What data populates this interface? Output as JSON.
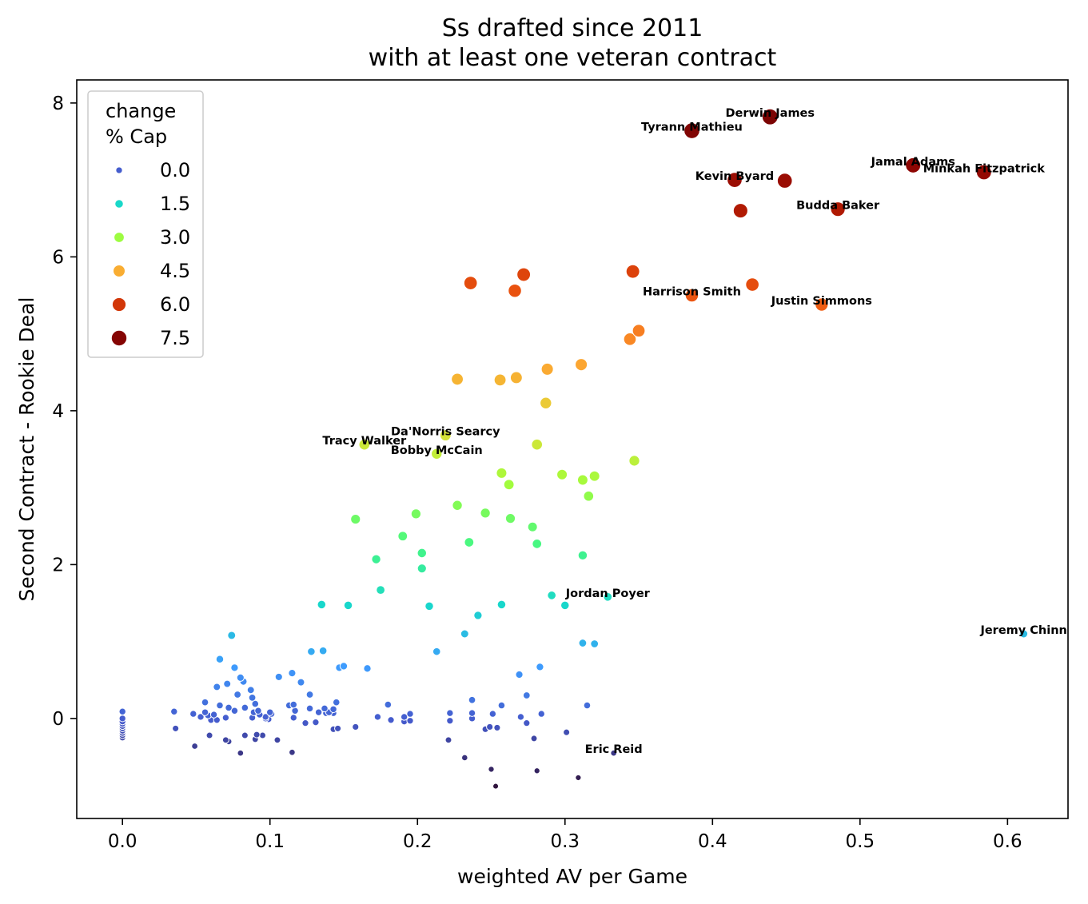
{
  "chart_data": {
    "type": "scatter",
    "title": [
      "Ss drafted since 2011",
      "with at least one veteran contract"
    ],
    "xlabel": "weighted AV per Game",
    "ylabel": "Second Contract - Rookie Deal",
    "xlim": [
      -0.031,
      0.641
    ],
    "ylim": [
      -1.3,
      8.3
    ],
    "xticks": [
      0.0,
      0.1,
      0.2,
      0.3,
      0.4,
      0.5,
      0.6
    ],
    "xtick_labels": [
      "0.0",
      "0.1",
      "0.2",
      "0.3",
      "0.4",
      "0.5",
      "0.6"
    ],
    "yticks": [
      0,
      2,
      4,
      6,
      8
    ],
    "ytick_labels": [
      "0",
      "2",
      "4",
      "6",
      "8"
    ],
    "grid": false,
    "legend": {
      "title": [
        "change",
        "% Cap"
      ],
      "placement": "top-left",
      "entries": [
        {
          "label": "0.0",
          "value": 0.0
        },
        {
          "label": "1.5",
          "value": 1.5
        },
        {
          "label": "3.0",
          "value": 3.0
        },
        {
          "label": "4.5",
          "value": 4.5
        },
        {
          "label": "6.0",
          "value": 6.0
        },
        {
          "label": "7.5",
          "value": 7.5
        }
      ]
    },
    "hue_variable": "change % Cap",
    "colormap": "turbo",
    "hue_range": [
      -0.9,
      7.9
    ],
    "points": [
      [
        0.439,
        7.82
      ],
      [
        0.386,
        7.64
      ],
      [
        0.536,
        7.19
      ],
      [
        0.584,
        7.1
      ],
      [
        0.415,
        7.0
      ],
      [
        0.449,
        6.99
      ],
      [
        0.485,
        6.62
      ],
      [
        0.419,
        6.6
      ],
      [
        0.346,
        5.81
      ],
      [
        0.272,
        5.77
      ],
      [
        0.236,
        5.66
      ],
      [
        0.266,
        5.56
      ],
      [
        0.427,
        5.64
      ],
      [
        0.386,
        5.5
      ],
      [
        0.474,
        5.38
      ],
      [
        0.35,
        5.04
      ],
      [
        0.344,
        4.93
      ],
      [
        0.311,
        4.6
      ],
      [
        0.288,
        4.54
      ],
      [
        0.267,
        4.43
      ],
      [
        0.256,
        4.4
      ],
      [
        0.227,
        4.41
      ],
      [
        0.287,
        4.1
      ],
      [
        0.219,
        3.68
      ],
      [
        0.164,
        3.56
      ],
      [
        0.213,
        3.44
      ],
      [
        0.281,
        3.56
      ],
      [
        0.347,
        3.35
      ],
      [
        0.257,
        3.19
      ],
      [
        0.298,
        3.17
      ],
      [
        0.32,
        3.15
      ],
      [
        0.312,
        3.1
      ],
      [
        0.262,
        3.04
      ],
      [
        0.316,
        2.89
      ],
      [
        0.227,
        2.77
      ],
      [
        0.246,
        2.67
      ],
      [
        0.199,
        2.66
      ],
      [
        0.263,
        2.6
      ],
      [
        0.158,
        2.59
      ],
      [
        0.278,
        2.49
      ],
      [
        0.19,
        2.37
      ],
      [
        0.235,
        2.29
      ],
      [
        0.281,
        2.27
      ],
      [
        0.203,
        2.15
      ],
      [
        0.172,
        2.07
      ],
      [
        0.312,
        2.12
      ],
      [
        0.203,
        1.95
      ],
      [
        0.175,
        1.67
      ],
      [
        0.291,
        1.6
      ],
      [
        0.329,
        1.58
      ],
      [
        0.135,
        1.48
      ],
      [
        0.153,
        1.47
      ],
      [
        0.208,
        1.46
      ],
      [
        0.257,
        1.48
      ],
      [
        0.3,
        1.47
      ],
      [
        0.241,
        1.34
      ],
      [
        0.074,
        1.08
      ],
      [
        0.232,
        1.1
      ],
      [
        0.611,
        1.1
      ],
      [
        0.312,
        0.98
      ],
      [
        0.32,
        0.97
      ],
      [
        0.128,
        0.87
      ],
      [
        0.136,
        0.88
      ],
      [
        0.213,
        0.87
      ],
      [
        0.066,
        0.77
      ],
      [
        0.076,
        0.66
      ],
      [
        0.147,
        0.66
      ],
      [
        0.15,
        0.68
      ],
      [
        0.166,
        0.65
      ],
      [
        0.283,
        0.67
      ],
      [
        0.115,
        0.59
      ],
      [
        0.106,
        0.54
      ],
      [
        0.269,
        0.57
      ],
      [
        0.08,
        0.53
      ],
      [
        0.082,
        0.48
      ],
      [
        0.121,
        0.47
      ],
      [
        0.071,
        0.45
      ],
      [
        0.064,
        0.41
      ],
      [
        0.087,
        0.37
      ],
      [
        0.127,
        0.31
      ],
      [
        0.078,
        0.31
      ],
      [
        0.274,
        0.3
      ],
      [
        0.088,
        0.27
      ],
      [
        0.056,
        0.21
      ],
      [
        0.145,
        0.21
      ],
      [
        0.237,
        0.24
      ],
      [
        0.066,
        0.17
      ],
      [
        0.09,
        0.19
      ],
      [
        0.116,
        0.18
      ],
      [
        0.113,
        0.17
      ],
      [
        0.18,
        0.18
      ],
      [
        0.257,
        0.17
      ],
      [
        0.315,
        0.17
      ],
      [
        0.072,
        0.14
      ],
      [
        0.083,
        0.14
      ],
      [
        0.127,
        0.13
      ],
      [
        0.137,
        0.13
      ],
      [
        0.143,
        0.12
      ],
      [
        0.117,
        0.1
      ],
      [
        0.092,
        0.1
      ],
      [
        0.076,
        0.1
      ],
      [
        0.1,
        0.08
      ],
      [
        0.133,
        0.08
      ],
      [
        0.14,
        0.08
      ],
      [
        0.143,
        0.07
      ],
      [
        0.035,
        0.09
      ],
      [
        0.056,
        0.08
      ],
      [
        0.062,
        0.05
      ],
      [
        0.048,
        0.06
      ],
      [
        0.089,
        0.08
      ],
      [
        0.093,
        0.05
      ],
      [
        0.101,
        0.06
      ],
      [
        0.138,
        0.07
      ],
      [
        0.058,
        0.04
      ],
      [
        0.053,
        0.02
      ],
      [
        0.07,
        0.01
      ],
      [
        0.088,
        0.01
      ],
      [
        0.097,
        0.02
      ],
      [
        0.116,
        0.01
      ],
      [
        0.173,
        0.02
      ],
      [
        0.195,
        0.06
      ],
      [
        0.222,
        0.07
      ],
      [
        0.237,
        0.07
      ],
      [
        0.251,
        0.06
      ],
      [
        0.27,
        0.02
      ],
      [
        0.284,
        0.06
      ],
      [
        0.191,
        0.02
      ],
      [
        0.06,
        -0.02
      ],
      [
        0.064,
        -0.02
      ],
      [
        0.088,
        0.0
      ],
      [
        0.099,
        -0.01
      ],
      [
        0.097,
        0.0
      ],
      [
        0.182,
        -0.02
      ],
      [
        0.191,
        -0.04
      ],
      [
        0.195,
        -0.03
      ],
      [
        0.222,
        -0.03
      ],
      [
        0.237,
        0.0
      ],
      [
        0.274,
        -0.06
      ],
      [
        0.131,
        -0.05
      ],
      [
        0.124,
        -0.06
      ],
      [
        0.036,
        -0.13
      ],
      [
        0.158,
        -0.11
      ],
      [
        0.143,
        -0.14
      ],
      [
        0.146,
        -0.13
      ],
      [
        0.249,
        -0.11
      ],
      [
        0.254,
        -0.12
      ],
      [
        0.246,
        -0.14
      ],
      [
        0.301,
        -0.18
      ],
      [
        0.059,
        -0.22
      ],
      [
        0.091,
        -0.21
      ],
      [
        0.083,
        -0.22
      ],
      [
        0.095,
        -0.22
      ],
      [
        0.07,
        -0.28
      ],
      [
        0.09,
        -0.27
      ],
      [
        0.072,
        -0.3
      ],
      [
        0.105,
        -0.28
      ],
      [
        0.221,
        -0.28
      ],
      [
        0.279,
        -0.26
      ],
      [
        0.049,
        -0.36
      ],
      [
        0.08,
        -0.45
      ],
      [
        0.115,
        -0.44
      ],
      [
        0.333,
        -0.45
      ],
      [
        0.232,
        -0.51
      ],
      [
        0.25,
        -0.66
      ],
      [
        0.281,
        -0.68
      ],
      [
        0.309,
        -0.77
      ],
      [
        0.253,
        -0.88
      ],
      [
        0.0,
        0.09
      ],
      [
        0.0,
        0.0
      ],
      [
        0.0,
        -0.04
      ],
      [
        0.0,
        -0.07
      ],
      [
        0.0,
        -0.1
      ],
      [
        0.0,
        -0.13
      ],
      [
        0.0,
        -0.16
      ],
      [
        0.0,
        -0.19
      ],
      [
        0.0,
        -0.22
      ],
      [
        0.0,
        -0.25
      ]
    ],
    "annotations": [
      {
        "text": "Derwin James",
        "x": 0.439,
        "y": 7.82
      },
      {
        "text": "Tyrann Mathieu",
        "x": 0.386,
        "y": 7.64
      },
      {
        "text": "Jamal Adams",
        "x": 0.536,
        "y": 7.19
      },
      {
        "text": "Minkah Fitzpatrick",
        "x": 0.584,
        "y": 7.1
      },
      {
        "text": "Kevin Byard",
        "x": 0.415,
        "y": 7.0
      },
      {
        "text": "Budda Baker",
        "x": 0.485,
        "y": 6.62
      },
      {
        "text": "Harrison Smith",
        "x": 0.386,
        "y": 5.5
      },
      {
        "text": "Justin Simmons",
        "x": 0.474,
        "y": 5.38
      },
      {
        "text": "Da'Norris Searcy",
        "x": 0.219,
        "y": 3.68
      },
      {
        "text": "Tracy Walker",
        "x": 0.164,
        "y": 3.56
      },
      {
        "text": "Bobby McCain",
        "x": 0.213,
        "y": 3.44
      },
      {
        "text": "Jordan Poyer",
        "x": 0.329,
        "y": 1.58
      },
      {
        "text": "Jeremy Chinn",
        "x": 0.611,
        "y": 1.1
      },
      {
        "text": "Eric Reid",
        "x": 0.333,
        "y": -0.45
      }
    ]
  }
}
